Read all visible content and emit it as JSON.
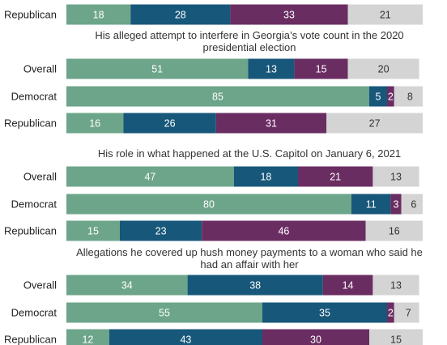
{
  "colors": {
    "seg1": "#6da58a",
    "seg2": "#17577a",
    "seg3": "#6a2d62",
    "seg4": "#d4d4d4",
    "label_light": "#ffffff",
    "label_dark": "#333333"
  },
  "chart_data": {
    "type": "bar",
    "orientation": "horizontal",
    "stacked": true,
    "xlim": [
      0,
      100
    ],
    "groups": [
      {
        "title": "",
        "rows": [
          {
            "label": "Republican",
            "values": [
              18,
              28,
              33,
              21
            ]
          }
        ]
      },
      {
        "title": "His alleged attempt to interfere in Georgia’s vote count in the 2020 presidential election",
        "title_lines": [
          "His alleged attempt to interfere in Georgia’s vote count in the 2020",
          "presidential election"
        ],
        "rows": [
          {
            "label": "Overall",
            "values": [
              51,
              13,
              15,
              20
            ]
          },
          {
            "label": "Democrat",
            "values": [
              85,
              5,
              2,
              8
            ]
          },
          {
            "label": "Republican",
            "values": [
              16,
              26,
              31,
              27
            ]
          }
        ]
      },
      {
        "title": "His role in what happened at the U.S. Capitol on January 6, 2021",
        "title_lines": [
          "His role in what happened at the U.S. Capitol on January 6, 2021"
        ],
        "rows": [
          {
            "label": "Overall",
            "values": [
              47,
              18,
              21,
              13
            ]
          },
          {
            "label": "Democrat",
            "values": [
              80,
              11,
              3,
              6
            ]
          },
          {
            "label": "Republican",
            "values": [
              15,
              23,
              46,
              16
            ]
          }
        ]
      },
      {
        "title": "Allegations he covered up hush money payments to a woman who said he had an affair with her",
        "title_lines": [
          "Allegations he covered up hush money payments to a woman who said he",
          "had an affair with her"
        ],
        "rows": [
          {
            "label": "Overall",
            "values": [
              34,
              38,
              14,
              13
            ]
          },
          {
            "label": "Democrat",
            "values": [
              55,
              35,
              2,
              7
            ]
          },
          {
            "label": "Republican",
            "values": [
              12,
              43,
              30,
              15
            ]
          }
        ]
      }
    ]
  }
}
